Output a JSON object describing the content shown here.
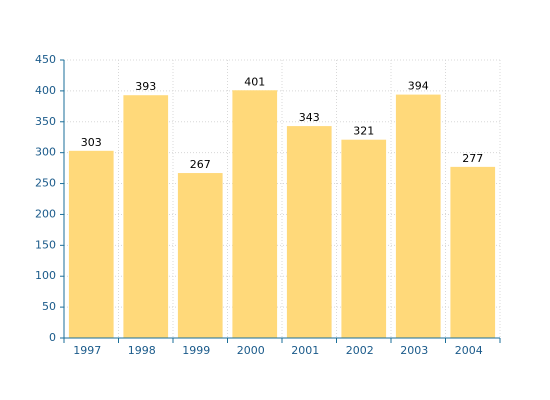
{
  "chart_data": {
    "type": "bar",
    "categories": [
      "1997",
      "1998",
      "1999",
      "2000",
      "2001",
      "2002",
      "2003",
      "2004"
    ],
    "values": [
      303,
      393,
      267,
      401,
      343,
      321,
      394,
      277
    ],
    "color": "#ffd97a",
    "ylim": [
      0,
      450
    ],
    "yticks": [
      0,
      50,
      100,
      150,
      200,
      250,
      300,
      350,
      400,
      450
    ],
    "grid": true
  }
}
